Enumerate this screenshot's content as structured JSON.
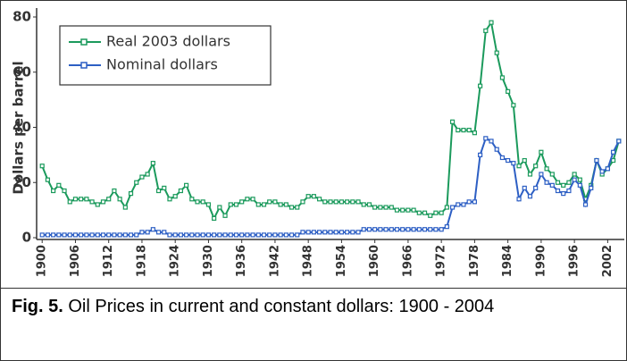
{
  "chart_data": {
    "type": "line",
    "y_label": "Dollars per barrel",
    "caption_label": "Fig. 5.",
    "caption": "Oil Prices in current and constant dollars: 1900 - 2004",
    "x": [
      1900,
      1901,
      1902,
      1903,
      1904,
      1905,
      1906,
      1907,
      1908,
      1909,
      1910,
      1911,
      1912,
      1913,
      1914,
      1915,
      1916,
      1917,
      1918,
      1919,
      1920,
      1921,
      1922,
      1923,
      1924,
      1925,
      1926,
      1927,
      1928,
      1929,
      1930,
      1931,
      1932,
      1933,
      1934,
      1935,
      1936,
      1937,
      1938,
      1939,
      1940,
      1941,
      1942,
      1943,
      1944,
      1945,
      1946,
      1947,
      1948,
      1949,
      1950,
      1951,
      1952,
      1953,
      1954,
      1955,
      1956,
      1957,
      1958,
      1959,
      1960,
      1961,
      1962,
      1963,
      1964,
      1965,
      1966,
      1967,
      1968,
      1969,
      1970,
      1971,
      1972,
      1973,
      1974,
      1975,
      1976,
      1977,
      1978,
      1979,
      1980,
      1981,
      1982,
      1983,
      1984,
      1985,
      1986,
      1987,
      1988,
      1989,
      1990,
      1991,
      1992,
      1993,
      1994,
      1995,
      1996,
      1997,
      1998,
      1999,
      2000,
      2001,
      2002,
      2003,
      2004
    ],
    "series": [
      {
        "name": "Real 2003 dollars",
        "color": "#1b9a5c",
        "values": [
          26,
          21,
          17,
          19,
          17,
          13,
          14,
          14,
          14,
          13,
          12,
          13,
          14,
          17,
          14,
          11,
          16,
          20,
          22,
          23,
          27,
          17,
          18,
          14,
          15,
          17,
          19,
          14,
          13,
          13,
          12,
          7,
          11,
          8,
          12,
          12,
          13,
          14,
          14,
          12,
          12,
          13,
          13,
          12,
          12,
          11,
          11,
          13,
          15,
          15,
          14,
          13,
          13,
          13,
          13,
          13,
          13,
          13,
          12,
          12,
          11,
          11,
          11,
          11,
          10,
          10,
          10,
          10,
          9,
          9,
          8,
          9,
          9,
          11,
          42,
          39,
          39,
          39,
          38,
          55,
          75,
          78,
          67,
          58,
          53,
          48,
          26,
          28,
          23,
          26,
          31,
          25,
          23,
          20,
          19,
          20,
          23,
          21,
          14,
          19,
          28,
          23,
          25,
          28,
          35
        ]
      },
      {
        "name": "Nominal dollars",
        "color": "#2d5fc4",
        "values": [
          1,
          1,
          1,
          1,
          1,
          1,
          1,
          1,
          1,
          1,
          1,
          1,
          1,
          1,
          1,
          1,
          1,
          1,
          2,
          2,
          3,
          2,
          2,
          1,
          1,
          1,
          1,
          1,
          1,
          1,
          1,
          1,
          1,
          1,
          1,
          1,
          1,
          1,
          1,
          1,
          1,
          1,
          1,
          1,
          1,
          1,
          1,
          2,
          2,
          2,
          2,
          2,
          2,
          2,
          2,
          2,
          2,
          2,
          3,
          3,
          3,
          3,
          3,
          3,
          3,
          3,
          3,
          3,
          3,
          3,
          3,
          3,
          3,
          4,
          11,
          12,
          12,
          13,
          13,
          30,
          36,
          35,
          32,
          29,
          28,
          27,
          14,
          18,
          15,
          18,
          23,
          20,
          19,
          17,
          16,
          17,
          21,
          19,
          12,
          18,
          28,
          24,
          25,
          31,
          35
        ]
      }
    ],
    "xlim": [
      1899,
      2005
    ],
    "xticks": [
      1900,
      1906,
      1912,
      1918,
      1924,
      1930,
      1936,
      1942,
      1948,
      1954,
      1960,
      1966,
      1972,
      1978,
      1984,
      1990,
      1996,
      2002
    ],
    "ylim": [
      0,
      80
    ],
    "yticks": [
      0,
      20,
      40,
      60,
      80
    ],
    "grid": false,
    "legend": "upper left"
  }
}
